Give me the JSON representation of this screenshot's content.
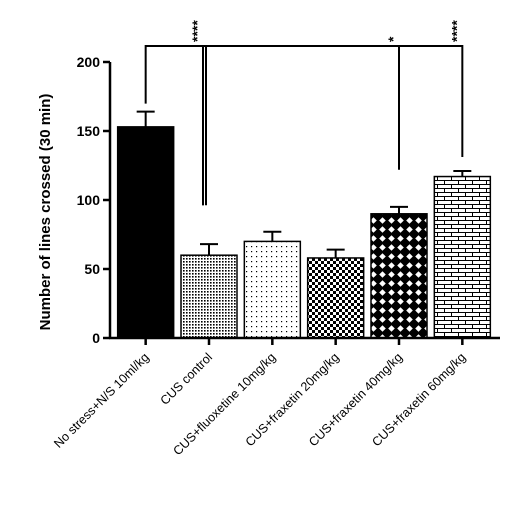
{
  "chart_data": {
    "type": "bar",
    "title": "",
    "xlabel": "",
    "ylabel": "Number of lines crossed (30 min)",
    "ylim": [
      0,
      200
    ],
    "yticks": [
      "0",
      "50",
      "100",
      "150",
      "200"
    ],
    "categories": [
      "No stress+N/S 10ml/kg",
      "CUS control",
      "CUS+fluoxetine 10mg/kg",
      "CUS+fraxetin 20mg/kg",
      "CUS+fraxetin 40mg/kg",
      "CUS+fraxetin 60mg/kg"
    ],
    "values": [
      153,
      60,
      70,
      58,
      90,
      117
    ],
    "errors": [
      11,
      8,
      7,
      6,
      5,
      4
    ],
    "fills": [
      "solid",
      "fine-dots",
      "sparse-dots",
      "checker",
      "diamond-lattice",
      "brick"
    ],
    "significance": [
      {
        "from": 0,
        "to": 1,
        "label": "****"
      },
      {
        "from": 1,
        "to": 4,
        "label": "*"
      },
      {
        "from": 1,
        "to": 5,
        "label": "****"
      }
    ],
    "grid": false,
    "legend": "none"
  }
}
